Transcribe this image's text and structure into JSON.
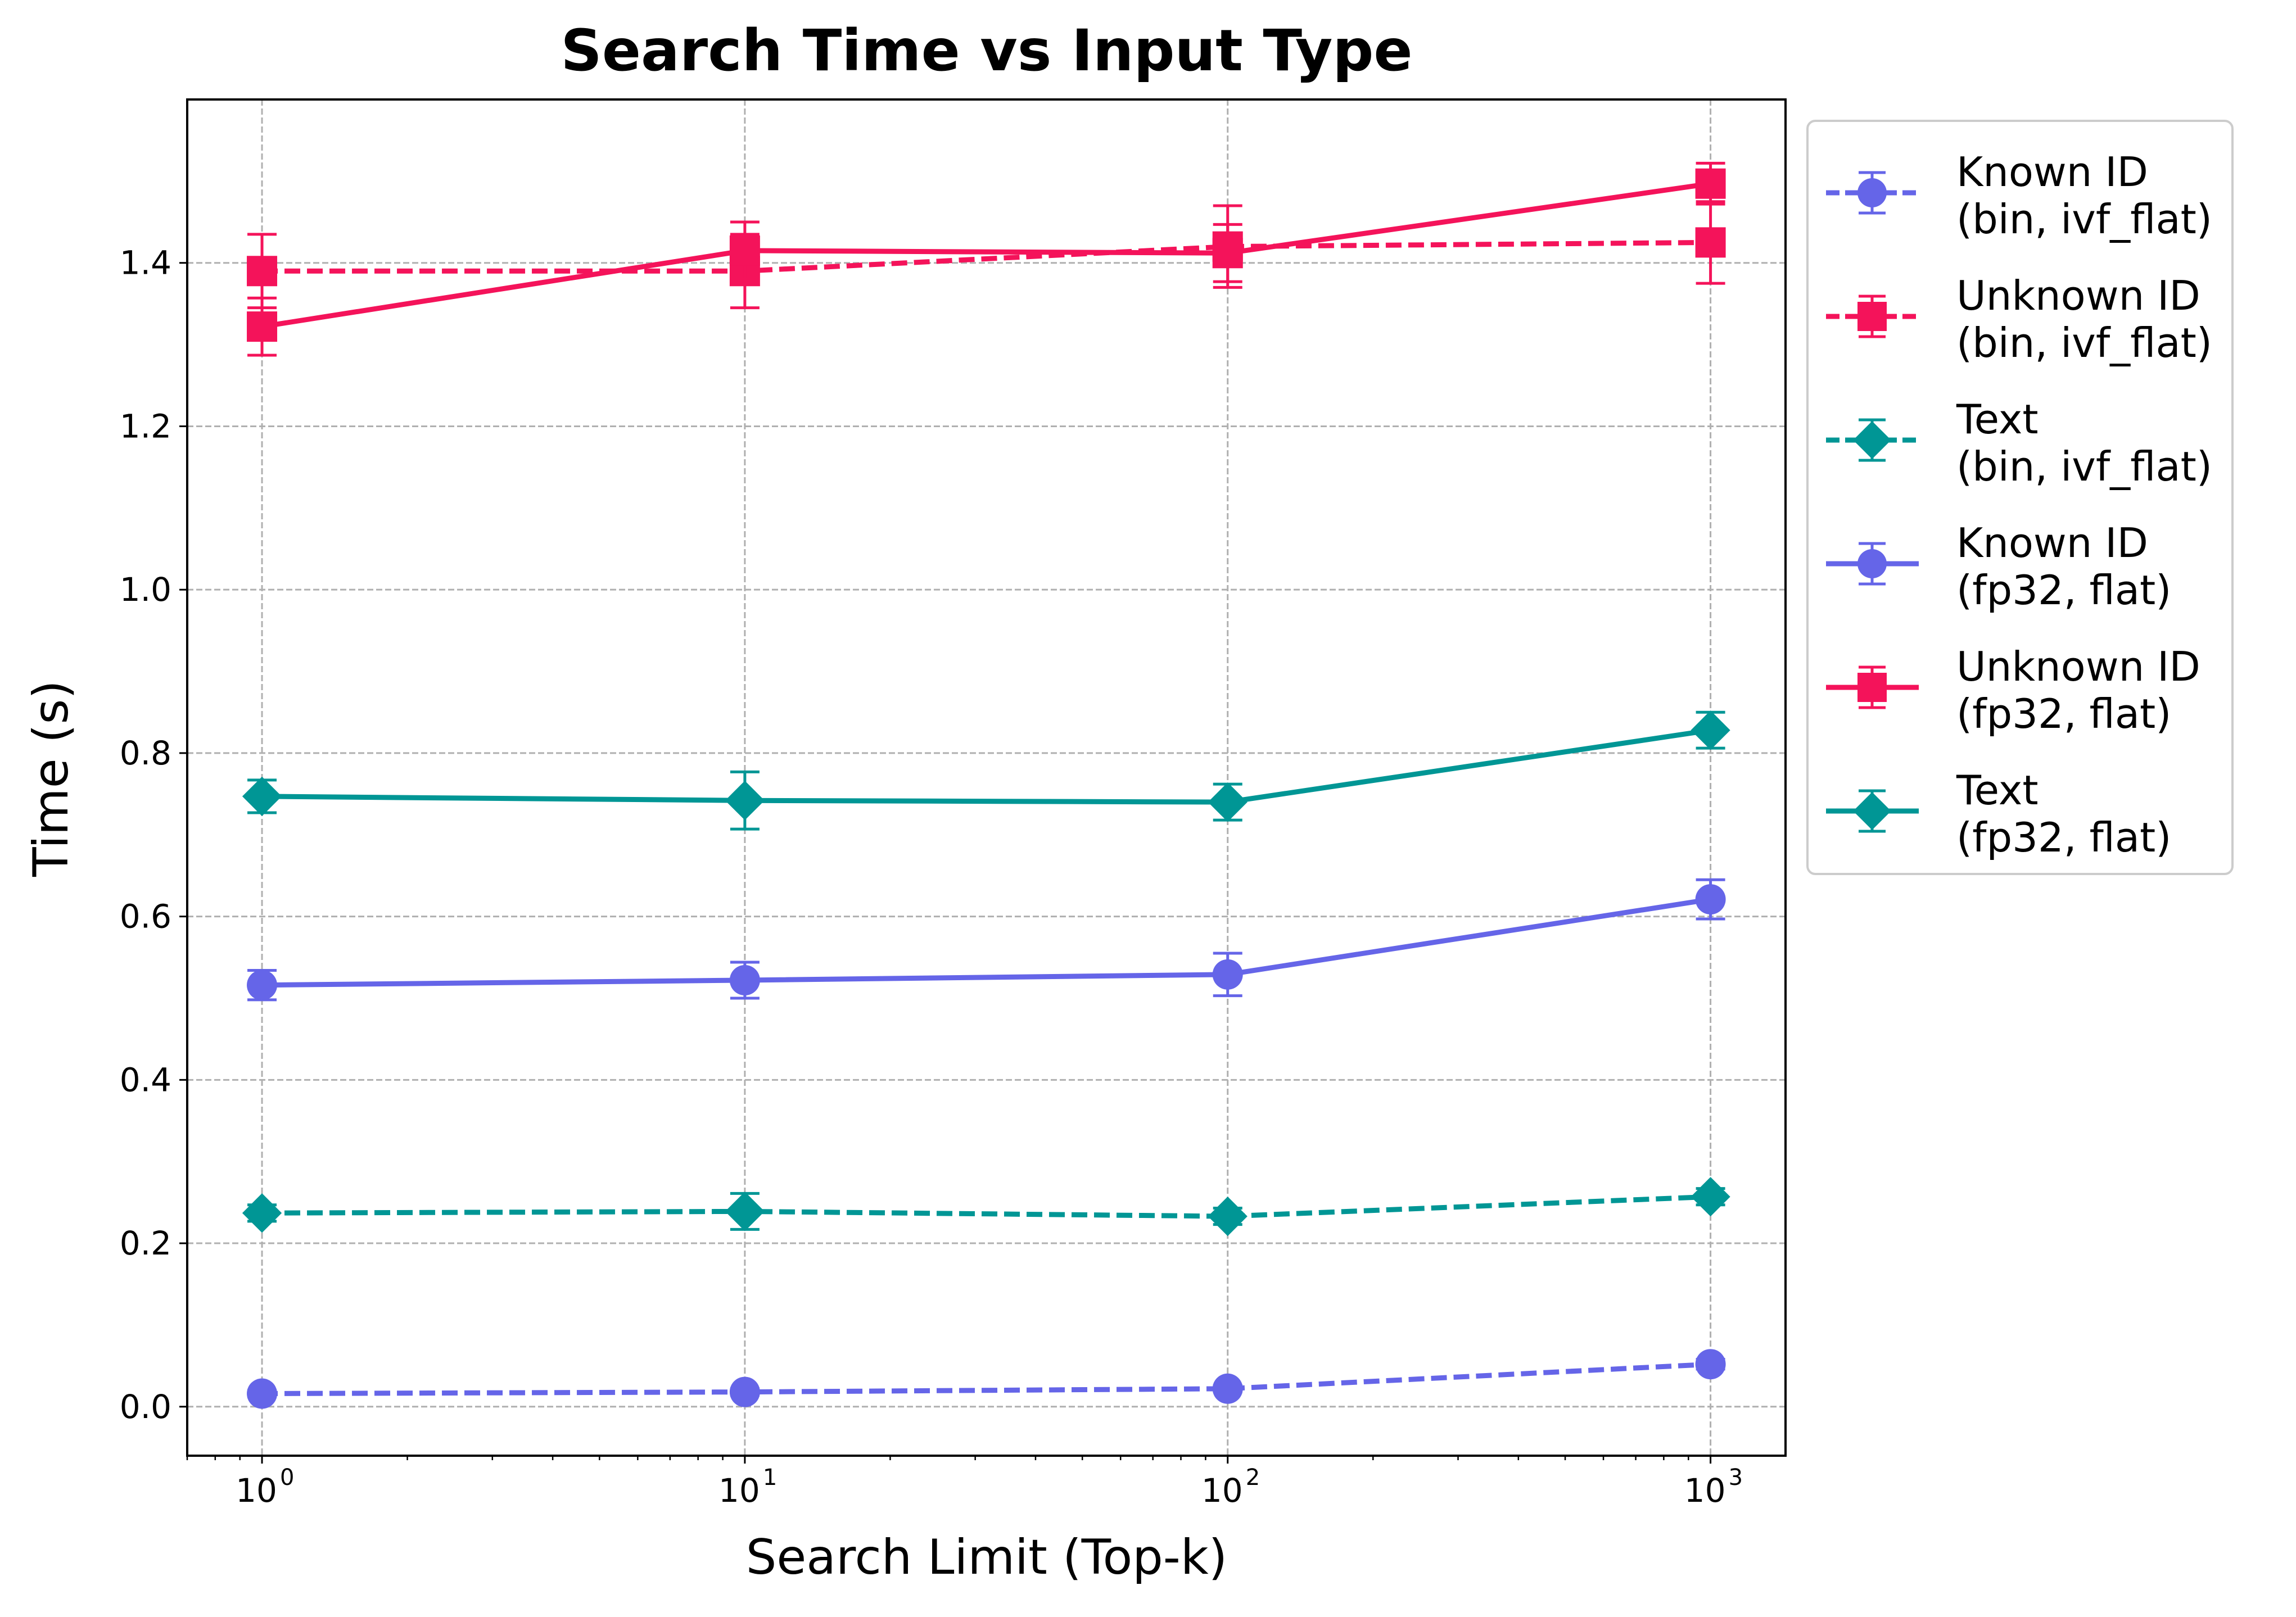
{
  "chart_data": {
    "type": "line",
    "title": "Search Time vs Input Type",
    "xlabel": "Search Limit (Top-k)",
    "ylabel": "Time (s)",
    "xscale": "log",
    "x": [
      1,
      10,
      100,
      1000
    ],
    "x_ticks": [
      {
        "base": "10",
        "exp": "0"
      },
      {
        "base": "10",
        "exp": "1"
      },
      {
        "base": "10",
        "exp": "2"
      },
      {
        "base": "10",
        "exp": "3"
      }
    ],
    "xlim": [
      0.7,
      1430
    ],
    "ylim": [
      -0.06,
      1.6
    ],
    "y_ticks": [
      "0.0",
      "0.2",
      "0.4",
      "0.6",
      "0.8",
      "1.0",
      "1.2",
      "1.4"
    ],
    "grid": true,
    "legend_position": "outside right",
    "series": [
      {
        "name": "Known ID (bin, ivf_flat)",
        "legend_line1": "Known ID",
        "legend_line2": "(bin, ivf_flat)",
        "color": "#6565e8",
        "marker": "circle",
        "linestyle": "dashed",
        "values": [
          0.016,
          0.018,
          0.022,
          0.052
        ],
        "errors": [
          0.004,
          0.004,
          0.004,
          0.006
        ]
      },
      {
        "name": "Unknown ID (bin, ivf_flat)",
        "legend_line1": "Unknown ID",
        "legend_line2": "(bin, ivf_flat)",
        "color": "#f4135a",
        "marker": "square",
        "linestyle": "dashed",
        "values": [
          1.39,
          1.39,
          1.42,
          1.425
        ],
        "errors": [
          0.045,
          0.045,
          0.05,
          0.05
        ]
      },
      {
        "name": "Text (bin, ivf_flat)",
        "legend_line1": "Text",
        "legend_line2": "(bin, ivf_flat)",
        "color": "#009695",
        "marker": "diamond",
        "linestyle": "dashed",
        "values": [
          0.237,
          0.239,
          0.233,
          0.257
        ],
        "errors": [
          0.01,
          0.022,
          0.01,
          0.01
        ]
      },
      {
        "name": "Known ID (fp32, flat)",
        "legend_line1": "Known ID",
        "legend_line2": "(fp32, flat)",
        "color": "#6565e8",
        "marker": "circle",
        "linestyle": "solid",
        "values": [
          0.516,
          0.522,
          0.529,
          0.621
        ],
        "errors": [
          0.018,
          0.022,
          0.026,
          0.024
        ]
      },
      {
        "name": "Unknown ID (fp32, flat)",
        "legend_line1": "Unknown ID",
        "legend_line2": "(fp32, flat)",
        "color": "#f4135a",
        "marker": "square",
        "linestyle": "solid",
        "values": [
          1.322,
          1.415,
          1.412,
          1.497
        ],
        "errors": [
          0.035,
          0.035,
          0.035,
          0.025
        ]
      },
      {
        "name": "Text (fp32, flat)",
        "legend_line1": "Text",
        "legend_line2": "(fp32, flat)",
        "color": "#009695",
        "marker": "diamond",
        "linestyle": "solid",
        "values": [
          0.747,
          0.742,
          0.74,
          0.828
        ],
        "errors": [
          0.02,
          0.035,
          0.022,
          0.022
        ]
      }
    ]
  }
}
